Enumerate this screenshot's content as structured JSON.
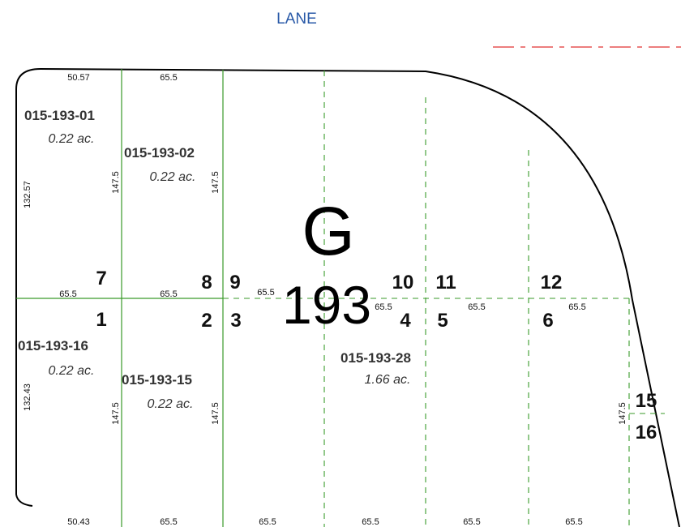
{
  "street": "LANE",
  "block": {
    "letter": "G",
    "number": "193"
  },
  "parcels": [
    {
      "id": "015-193-01",
      "area": "0.22 ac."
    },
    {
      "id": "015-193-02",
      "area": "0.22 ac."
    },
    {
      "id": "015-193-16",
      "area": "0.22 ac."
    },
    {
      "id": "015-193-15",
      "area": "0.22 ac."
    },
    {
      "id": "015-193-28",
      "area": "1.66 ac."
    }
  ],
  "lots": [
    "7",
    "8",
    "9",
    "10",
    "11",
    "12",
    "1",
    "2",
    "3",
    "4",
    "5",
    "6",
    "15",
    "16"
  ],
  "dimensions": [
    "50.57",
    "65.5",
    "132.57",
    "147.5",
    "147.5",
    "65.5",
    "65.5",
    "65.5",
    "65.5",
    "65.5",
    "65.5",
    "132.43",
    "147.5",
    "147.5",
    "147.5",
    "50.43",
    "65.5",
    "65.5",
    "65.5",
    "65.5",
    "65.5"
  ]
}
